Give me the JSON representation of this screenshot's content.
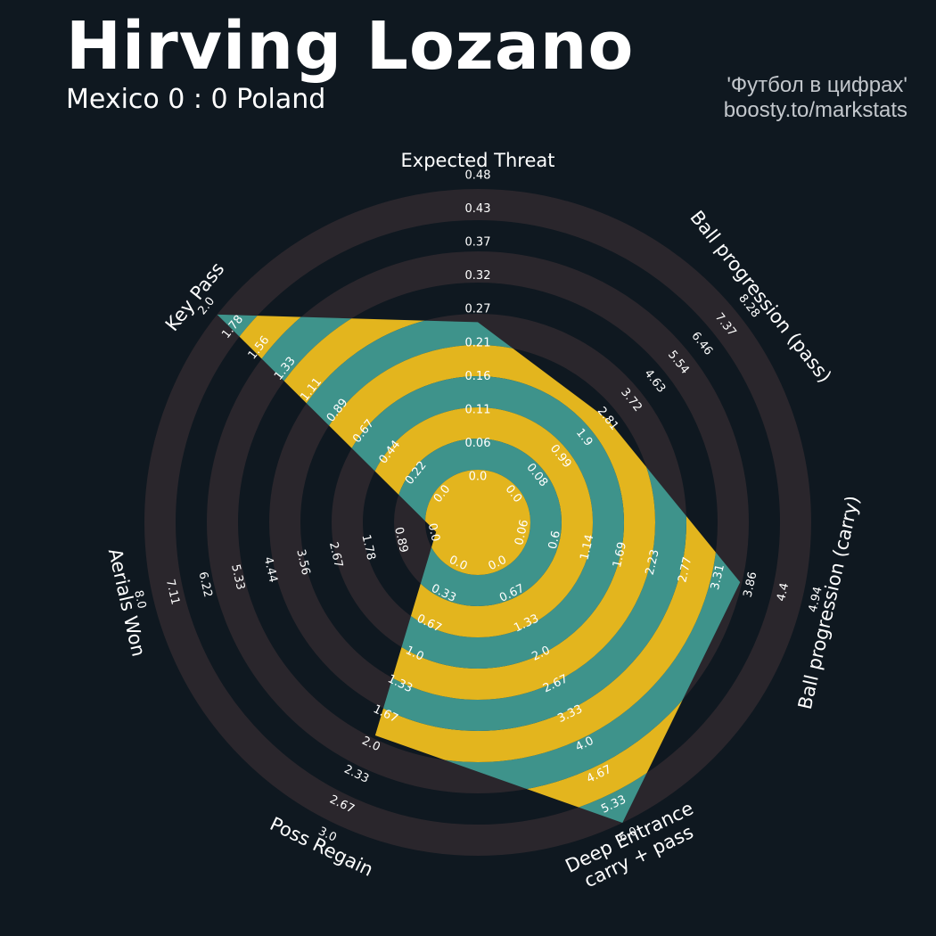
{
  "header": {
    "title": "Hirving Lozano",
    "subtitle": "Mexico 0 : 0 Poland",
    "credit_line1": "'Футбол в цифрах'",
    "credit_line2": "boosty.to/markstats"
  },
  "colors": {
    "background": "#0f1820",
    "range_band": "#2a262c",
    "fill_teal": "#3e938b",
    "fill_gold": "#e3b51e",
    "text": "#ffffff"
  },
  "chart_data": {
    "type": "radar",
    "params": [
      {
        "label": "Expected Threat",
        "value": 0.26,
        "ticks": [
          "0.0",
          "0.06",
          "0.11",
          "0.16",
          "0.21",
          "0.27",
          "0.32",
          "0.37",
          "0.43",
          "0.48"
        ]
      },
      {
        "label": "Ball progression (pass)",
        "value": 3.5,
        "ticks": [
          "0.0",
          "0.08",
          "0.99",
          "1.9",
          "2.81",
          "3.72",
          "4.63",
          "5.54",
          "6.46",
          "7.37",
          "8.28"
        ]
      },
      {
        "label": "Ball progression (carry)",
        "value": 3.86,
        "ticks": [
          "0.06",
          "0.6",
          "1.14",
          "1.69",
          "2.23",
          "2.77",
          "3.31",
          "3.86",
          "4.4",
          "4.94"
        ]
      },
      {
        "label": "Deep Entrance\ncarry + pass",
        "value": 6.0,
        "ticks": [
          "0.0",
          "0.67",
          "1.33",
          "2.0",
          "2.67",
          "3.33",
          "4.0",
          "4.67",
          "5.33",
          "6.0"
        ]
      },
      {
        "label": "Poss Regain",
        "value": 2.0,
        "ticks": [
          "0.0",
          "0.33",
          "0.67",
          "1.0",
          "1.33",
          "1.67",
          "2.0",
          "2.33",
          "2.67",
          "3.0"
        ]
      },
      {
        "label": "Aerials Won",
        "value": 0.0,
        "ticks": [
          "0.0",
          "0.89",
          "1.78",
          "2.67",
          "3.56",
          "4.44",
          "5.33",
          "6.22",
          "7.11",
          "8.0"
        ]
      },
      {
        "label": "Key Pass",
        "value": 2.0,
        "ticks": [
          "0.0",
          "0.22",
          "0.44",
          "0.67",
          "0.89",
          "1.11",
          "1.33",
          "1.56",
          "1.78",
          "2.0"
        ]
      }
    ]
  }
}
